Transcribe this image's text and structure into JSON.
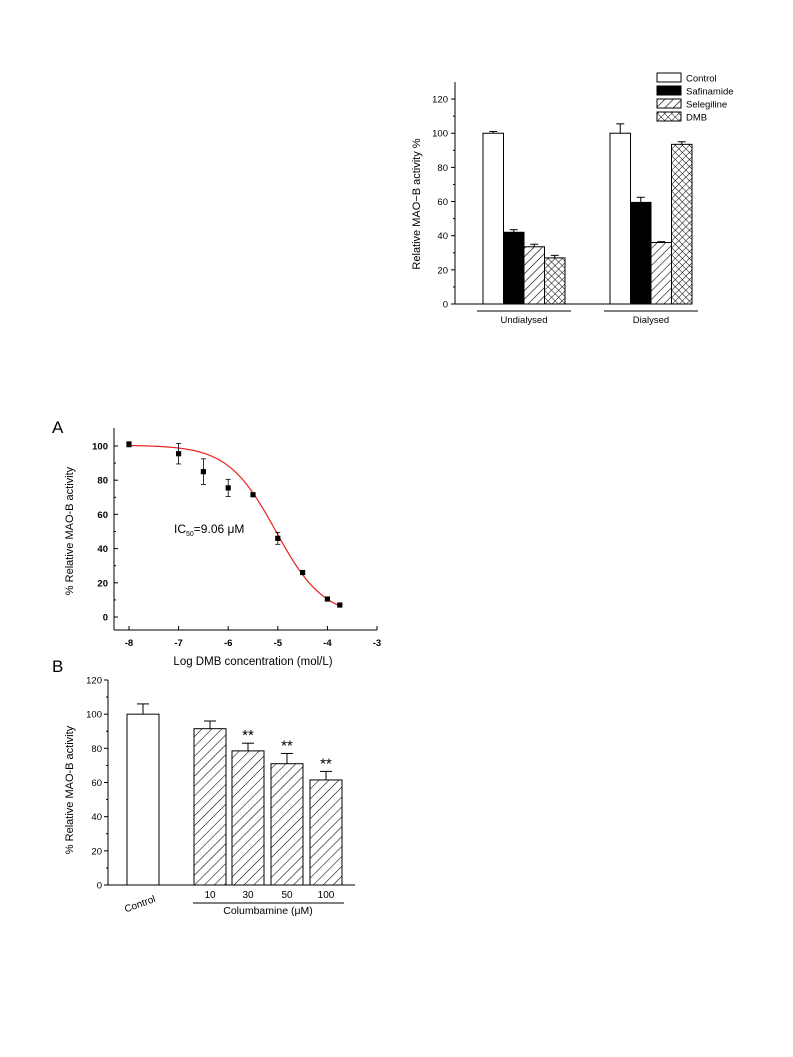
{
  "chart_data": [
    {
      "id": "top",
      "type": "bar",
      "title": "",
      "xlabel": "",
      "ylabel": "Relative  MAO−B activity %",
      "ylim": [
        0,
        130
      ],
      "yticks": [
        "0",
        "20",
        "40",
        "60",
        "80",
        "100",
        "120"
      ],
      "groups": [
        "Undialysed",
        "Dialysed"
      ],
      "legend": {
        "placement": "top-right",
        "entries": [
          "Control",
          "Safinamide",
          "Selegiline",
          "DMB"
        ]
      },
      "series": [
        {
          "name": "Control",
          "fill": "white",
          "values": [
            100,
            100
          ],
          "errors": [
            1,
            5.5
          ]
        },
        {
          "name": "Safinamide",
          "fill": "black",
          "values": [
            42,
            59.5
          ],
          "errors": [
            1.5,
            3
          ]
        },
        {
          "name": "Selegiline",
          "fill": "diagonal-hatch",
          "values": [
            33.5,
            36
          ],
          "errors": [
            1.5,
            0.5
          ]
        },
        {
          "name": "DMB",
          "fill": "cross-hatch",
          "values": [
            27,
            93.5
          ],
          "errors": [
            1.5,
            1.5
          ]
        }
      ]
    },
    {
      "id": "A",
      "panel_label": "A",
      "type": "scatter",
      "title": "",
      "xlabel": "Log DMB concentration (mol/L)",
      "ylabel": "% Relative MAO-B activity",
      "xlim": [
        -8,
        -3
      ],
      "ylim": [
        -5,
        110
      ],
      "xticks": [
        "-8",
        "-7",
        "-6",
        "-5",
        "-4",
        "-3"
      ],
      "yticks": [
        "0",
        "20",
        "40",
        "60",
        "80",
        "100"
      ],
      "annotation": {
        "prefix": "IC",
        "subscript": "50",
        "suffix": "=9.06 μM"
      },
      "points": [
        {
          "x": -8,
          "y": 101,
          "err": 1.5
        },
        {
          "x": -7,
          "y": 95.5,
          "err": 6
        },
        {
          "x": -6.5,
          "y": 85,
          "err": 7.5
        },
        {
          "x": -6,
          "y": 75.5,
          "err": 5
        },
        {
          "x": -5.5,
          "y": 71.5,
          "err": 0.5
        },
        {
          "x": -5,
          "y": 46,
          "err": 3.5
        },
        {
          "x": -4.5,
          "y": 26,
          "err": 0.5
        },
        {
          "x": -4,
          "y": 10.5,
          "err": 0.5
        },
        {
          "x": -3.75,
          "y": 7,
          "err": 0.5
        }
      ],
      "fit_curve": {
        "type": "sigmoid",
        "top": 100.5,
        "bottom": 0,
        "log_ic50": -5.04,
        "hill_slope": -0.9,
        "x_range": [
          -8,
          -3.75
        ],
        "color": "#e8211c"
      }
    },
    {
      "id": "B",
      "panel_label": "B",
      "type": "bar",
      "title": "",
      "xlabel": "Columbamine (μM)",
      "ylabel": "% Relative MAO-B activity",
      "ylim": [
        0,
        120
      ],
      "yticks": [
        "0",
        "20",
        "40",
        "60",
        "80",
        "100",
        "120"
      ],
      "categories": [
        "Control",
        "10",
        "30",
        "50",
        "100"
      ],
      "values": [
        100,
        91.5,
        78.5,
        71,
        61.5
      ],
      "errors": [
        6,
        4.5,
        4.5,
        6,
        5
      ],
      "significance": [
        "",
        "",
        "**",
        "**",
        "**"
      ]
    }
  ]
}
